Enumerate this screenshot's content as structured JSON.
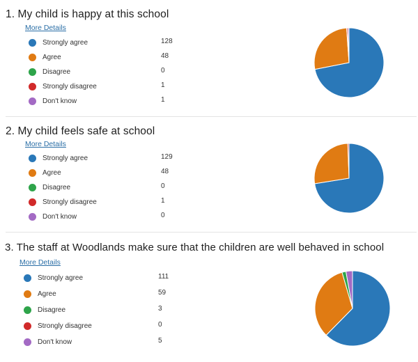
{
  "colors": {
    "strongly_agree": "#2a78b8",
    "agree": "#e07b13",
    "disagree": "#2ea44a",
    "strongly_disagree": "#d12a2a",
    "dont_know": "#a36ac4"
  },
  "questions": [
    {
      "title": "1.  My child is happy at this school",
      "more_details": "More Details",
      "options": [
        {
          "label": "Strongly agree",
          "count": "128",
          "color_key": "strongly_agree"
        },
        {
          "label": "Agree",
          "count": "48",
          "color_key": "agree"
        },
        {
          "label": "Disagree",
          "count": "0",
          "color_key": "disagree"
        },
        {
          "label": "Strongly disagree",
          "count": "1",
          "color_key": "strongly_disagree"
        },
        {
          "label": "Don't know",
          "count": "1",
          "color_key": "dont_know"
        }
      ]
    },
    {
      "title": "2.  My child feels safe at school",
      "more_details": "More Details",
      "options": [
        {
          "label": "Strongly agree",
          "count": "129",
          "color_key": "strongly_agree"
        },
        {
          "label": "Agree",
          "count": "48",
          "color_key": "agree"
        },
        {
          "label": "Disagree",
          "count": "0",
          "color_key": "disagree"
        },
        {
          "label": "Strongly disagree",
          "count": "1",
          "color_key": "strongly_disagree"
        },
        {
          "label": "Don't know",
          "count": "0",
          "color_key": "dont_know"
        }
      ]
    },
    {
      "title": "3.  The staff at Woodlands make sure that the children are well behaved in school",
      "more_details": "More Details",
      "options": [
        {
          "label": "Strongly agree",
          "count": "111",
          "color_key": "strongly_agree"
        },
        {
          "label": "Agree",
          "count": "59",
          "color_key": "agree"
        },
        {
          "label": "Disagree",
          "count": "3",
          "color_key": "disagree"
        },
        {
          "label": "Strongly disagree",
          "count": "0",
          "color_key": "strongly_disagree"
        },
        {
          "label": "Don't know",
          "count": "5",
          "color_key": "dont_know"
        }
      ]
    }
  ]
}
